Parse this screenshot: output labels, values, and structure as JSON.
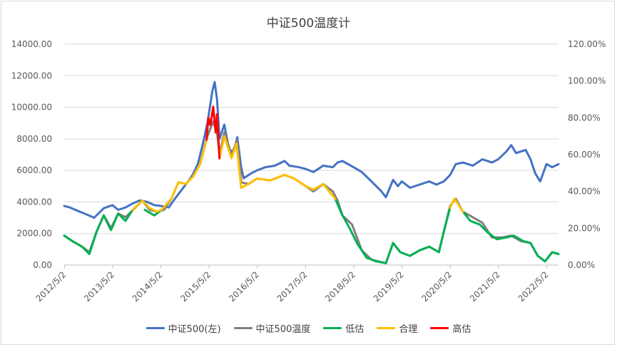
{
  "chart_data": {
    "type": "line",
    "title": "中证500温度计",
    "y_left": {
      "ylim": [
        0,
        14000
      ],
      "ticks": [
        "0.00",
        "2000.00",
        "4000.00",
        "6000.00",
        "8000.00",
        "10000.00",
        "12000.00",
        "14000.00"
      ]
    },
    "y_right": {
      "ylim": [
        0,
        1.2
      ],
      "ticks": [
        "0.00%",
        "20.00%",
        "40.00%",
        "60.00%",
        "80.00%",
        "100.00%",
        "120.00%"
      ]
    },
    "x_ticks": [
      "2012/5/2",
      "2013/5/2",
      "2014/5/2",
      "2015/5/2",
      "2016/5/2",
      "2017/5/2",
      "2018/5/2",
      "2019/5/2",
      "2020/5/2",
      "2021/5/2",
      "2022/5/2"
    ],
    "x_range": [
      2012.33,
      2022.58
    ],
    "grid": "horizontal",
    "legend_position": "bottom",
    "series": [
      {
        "name": "中证500(左)",
        "axis": "left",
        "color": "#4472C4",
        "points": [
          [
            2012.33,
            3750
          ],
          [
            2012.45,
            3650
          ],
          [
            2012.6,
            3450
          ],
          [
            2012.8,
            3200
          ],
          [
            2012.95,
            3000
          ],
          [
            2013.05,
            3300
          ],
          [
            2013.15,
            3600
          ],
          [
            2013.33,
            3800
          ],
          [
            2013.45,
            3500
          ],
          [
            2013.6,
            3650
          ],
          [
            2013.75,
            3900
          ],
          [
            2013.9,
            4100
          ],
          [
            2014.05,
            4000
          ],
          [
            2014.2,
            3800
          ],
          [
            2014.33,
            3750
          ],
          [
            2014.5,
            3650
          ],
          [
            2014.6,
            4100
          ],
          [
            2014.75,
            4700
          ],
          [
            2014.9,
            5300
          ],
          [
            2015.0,
            5750
          ],
          [
            2015.1,
            6400
          ],
          [
            2015.2,
            7600
          ],
          [
            2015.3,
            9000
          ],
          [
            2015.4,
            11000
          ],
          [
            2015.45,
            11600
          ],
          [
            2015.5,
            10500
          ],
          [
            2015.55,
            8000
          ],
          [
            2015.65,
            8900
          ],
          [
            2015.75,
            7300
          ],
          [
            2015.85,
            7200
          ],
          [
            2015.92,
            8100
          ],
          [
            2016.0,
            6200
          ],
          [
            2016.05,
            5500
          ],
          [
            2016.2,
            5800
          ],
          [
            2016.33,
            6000
          ],
          [
            2016.5,
            6200
          ],
          [
            2016.7,
            6300
          ],
          [
            2016.9,
            6600
          ],
          [
            2017.0,
            6300
          ],
          [
            2017.2,
            6200
          ],
          [
            2017.33,
            6100
          ],
          [
            2017.5,
            5900
          ],
          [
            2017.7,
            6300
          ],
          [
            2017.9,
            6200
          ],
          [
            2018.0,
            6500
          ],
          [
            2018.1,
            6600
          ],
          [
            2018.33,
            6200
          ],
          [
            2018.5,
            5900
          ],
          [
            2018.7,
            5300
          ],
          [
            2018.9,
            4700
          ],
          [
            2019.0,
            4300
          ],
          [
            2019.15,
            5400
          ],
          [
            2019.25,
            5000
          ],
          [
            2019.33,
            5300
          ],
          [
            2019.5,
            4900
          ],
          [
            2019.7,
            5100
          ],
          [
            2019.9,
            5300
          ],
          [
            2020.05,
            5100
          ],
          [
            2020.2,
            5300
          ],
          [
            2020.33,
            5700
          ],
          [
            2020.45,
            6400
          ],
          [
            2020.6,
            6500
          ],
          [
            2020.8,
            6300
          ],
          [
            2021.0,
            6700
          ],
          [
            2021.2,
            6500
          ],
          [
            2021.33,
            6700
          ],
          [
            2021.5,
            7200
          ],
          [
            2021.6,
            7600
          ],
          [
            2021.7,
            7100
          ],
          [
            2021.9,
            7300
          ],
          [
            2022.0,
            6700
          ],
          [
            2022.1,
            5800
          ],
          [
            2022.2,
            5300
          ],
          [
            2022.33,
            6400
          ],
          [
            2022.45,
            6200
          ],
          [
            2022.58,
            6400
          ]
        ]
      },
      {
        "name": "中证500温度",
        "axis": "right",
        "color": "#808080",
        "points": [
          [
            2012.33,
            0.16
          ],
          [
            2012.5,
            0.13
          ],
          [
            2012.7,
            0.1
          ],
          [
            2012.85,
            0.07
          ],
          [
            2013.0,
            0.18
          ],
          [
            2013.15,
            0.27
          ],
          [
            2013.3,
            0.2
          ],
          [
            2013.45,
            0.28
          ],
          [
            2013.6,
            0.26
          ],
          [
            2013.8,
            0.31
          ],
          [
            2013.95,
            0.35
          ],
          [
            2014.1,
            0.3
          ],
          [
            2014.25,
            0.29
          ],
          [
            2014.4,
            0.3
          ],
          [
            2014.55,
            0.36
          ],
          [
            2014.7,
            0.45
          ],
          [
            2014.85,
            0.44
          ],
          [
            2015.0,
            0.48
          ],
          [
            2015.15,
            0.55
          ],
          [
            2015.3,
            0.7
          ],
          [
            2015.42,
            0.78
          ],
          [
            2015.5,
            0.72
          ],
          [
            2015.55,
            0.6
          ],
          [
            2015.65,
            0.72
          ],
          [
            2015.8,
            0.6
          ],
          [
            2015.92,
            0.68
          ],
          [
            2016.0,
            0.45
          ],
          [
            2016.15,
            0.44
          ],
          [
            2016.33,
            0.47
          ],
          [
            2016.6,
            0.46
          ],
          [
            2016.9,
            0.49
          ],
          [
            2017.1,
            0.47
          ],
          [
            2017.33,
            0.43
          ],
          [
            2017.5,
            0.4
          ],
          [
            2017.7,
            0.44
          ],
          [
            2017.9,
            0.4
          ],
          [
            2018.0,
            0.35
          ],
          [
            2018.1,
            0.27
          ],
          [
            2018.3,
            0.22
          ],
          [
            2018.5,
            0.08
          ],
          [
            2018.7,
            0.03
          ],
          [
            2019.0,
            0.01
          ],
          [
            2019.15,
            0.12
          ],
          [
            2019.3,
            0.07
          ],
          [
            2019.5,
            0.05
          ],
          [
            2019.7,
            0.08
          ],
          [
            2019.9,
            0.1
          ],
          [
            2020.1,
            0.07
          ],
          [
            2020.2,
            0.18
          ],
          [
            2020.33,
            0.32
          ],
          [
            2020.45,
            0.36
          ],
          [
            2020.6,
            0.29
          ],
          [
            2020.8,
            0.26
          ],
          [
            2021.0,
            0.23
          ],
          [
            2021.2,
            0.15
          ],
          [
            2021.4,
            0.15
          ],
          [
            2021.6,
            0.16
          ],
          [
            2021.8,
            0.13
          ],
          [
            2022.0,
            0.12
          ],
          [
            2022.15,
            0.05
          ],
          [
            2022.3,
            0.02
          ],
          [
            2022.45,
            0.07
          ],
          [
            2022.58,
            0.06
          ]
        ]
      },
      {
        "name": "低估",
        "axis": "right",
        "color": "#00B050",
        "points": [
          [
            2012.33,
            0.16
          ],
          [
            2012.5,
            0.13
          ],
          [
            2012.7,
            0.1
          ],
          [
            2012.85,
            0.06
          ],
          [
            2013.0,
            0.18
          ],
          [
            2013.15,
            0.27
          ],
          [
            2013.3,
            0.19
          ],
          [
            2013.45,
            0.28
          ],
          [
            2013.6,
            0.24
          ],
          [
            2013.75,
            0.3
          ],
          null,
          [
            2014.0,
            0.3
          ],
          [
            2014.2,
            0.27
          ],
          [
            2014.35,
            0.3
          ],
          null,
          [
            2017.95,
            0.36
          ],
          [
            2018.1,
            0.27
          ],
          [
            2018.25,
            0.2
          ],
          [
            2018.4,
            0.12
          ],
          [
            2018.6,
            0.04
          ],
          [
            2018.8,
            0.02
          ],
          [
            2019.0,
            0.01
          ],
          [
            2019.15,
            0.12
          ],
          [
            2019.3,
            0.07
          ],
          [
            2019.5,
            0.05
          ],
          [
            2019.7,
            0.08
          ],
          [
            2019.9,
            0.1
          ],
          [
            2020.1,
            0.07
          ],
          [
            2020.2,
            0.18
          ],
          [
            2020.33,
            0.31
          ],
          null,
          [
            2020.6,
            0.29
          ],
          [
            2020.75,
            0.24
          ],
          [
            2020.95,
            0.22
          ],
          [
            2021.1,
            0.18
          ],
          [
            2021.3,
            0.14
          ],
          [
            2021.5,
            0.15
          ],
          [
            2021.65,
            0.16
          ],
          [
            2021.85,
            0.13
          ],
          [
            2022.0,
            0.12
          ],
          [
            2022.15,
            0.05
          ],
          [
            2022.3,
            0.02
          ],
          [
            2022.45,
            0.07
          ],
          [
            2022.58,
            0.06
          ]
        ]
      },
      {
        "name": "合理",
        "axis": "right",
        "color": "#FFC000",
        "points": [
          [
            2013.75,
            0.3
          ],
          [
            2013.95,
            0.35
          ],
          [
            2014.1,
            0.31
          ],
          [
            2014.25,
            0.29
          ],
          [
            2014.35,
            0.3
          ],
          [
            2014.55,
            0.36
          ],
          [
            2014.7,
            0.45
          ],
          [
            2014.85,
            0.44
          ],
          [
            2015.0,
            0.48
          ],
          [
            2015.15,
            0.55
          ],
          [
            2015.28,
            0.68
          ],
          null,
          [
            2015.55,
            0.58
          ],
          [
            2015.65,
            0.7
          ],
          [
            2015.8,
            0.58
          ],
          [
            2015.9,
            0.66
          ],
          [
            2016.0,
            0.42
          ],
          [
            2016.15,
            0.44
          ],
          [
            2016.33,
            0.47
          ],
          [
            2016.6,
            0.46
          ],
          [
            2016.9,
            0.49
          ],
          [
            2017.1,
            0.47
          ],
          [
            2017.33,
            0.43
          ],
          [
            2017.5,
            0.41
          ],
          [
            2017.7,
            0.44
          ],
          [
            2017.95,
            0.36
          ],
          null,
          [
            2020.33,
            0.31
          ],
          [
            2020.42,
            0.36
          ],
          [
            2020.5,
            0.33
          ],
          [
            2020.6,
            0.29
          ]
        ]
      },
      {
        "name": "高估",
        "axis": "right",
        "color": "#FF0000",
        "points": [
          [
            2015.28,
            0.68
          ],
          [
            2015.32,
            0.8
          ],
          [
            2015.36,
            0.76
          ],
          [
            2015.42,
            0.86
          ],
          [
            2015.47,
            0.72
          ],
          [
            2015.5,
            0.82
          ],
          [
            2015.55,
            0.58
          ]
        ]
      }
    ]
  }
}
